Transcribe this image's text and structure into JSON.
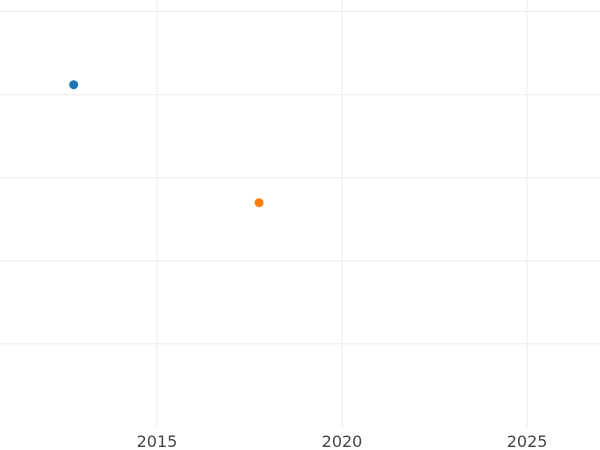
{
  "chart_data": {
    "type": "scatter",
    "title": "",
    "xlabel": "",
    "ylabel": "",
    "xlim": [
      2010.76,
      2026.97
    ],
    "ylim": [
      0,
      5.14
    ],
    "x_ticks": [
      2015,
      2020,
      2025
    ],
    "x_tick_labels": [
      "2015",
      "2020",
      "2025"
    ],
    "y_gridlines": [
      1,
      2,
      3,
      4,
      5
    ],
    "y_tick_labels_shown": false,
    "grid": true,
    "legend": "none",
    "series": [
      {
        "color": "#1f77b4",
        "points": [
          {
            "x": 2012.75,
            "y": 4.12
          }
        ]
      },
      {
        "color": "#ff7f0e",
        "points": [
          {
            "x": 2017.76,
            "y": 2.7
          }
        ]
      }
    ],
    "colors": {
      "grid": "#ebebeb",
      "tick_text": "#444444",
      "background": "#ffffff"
    }
  }
}
